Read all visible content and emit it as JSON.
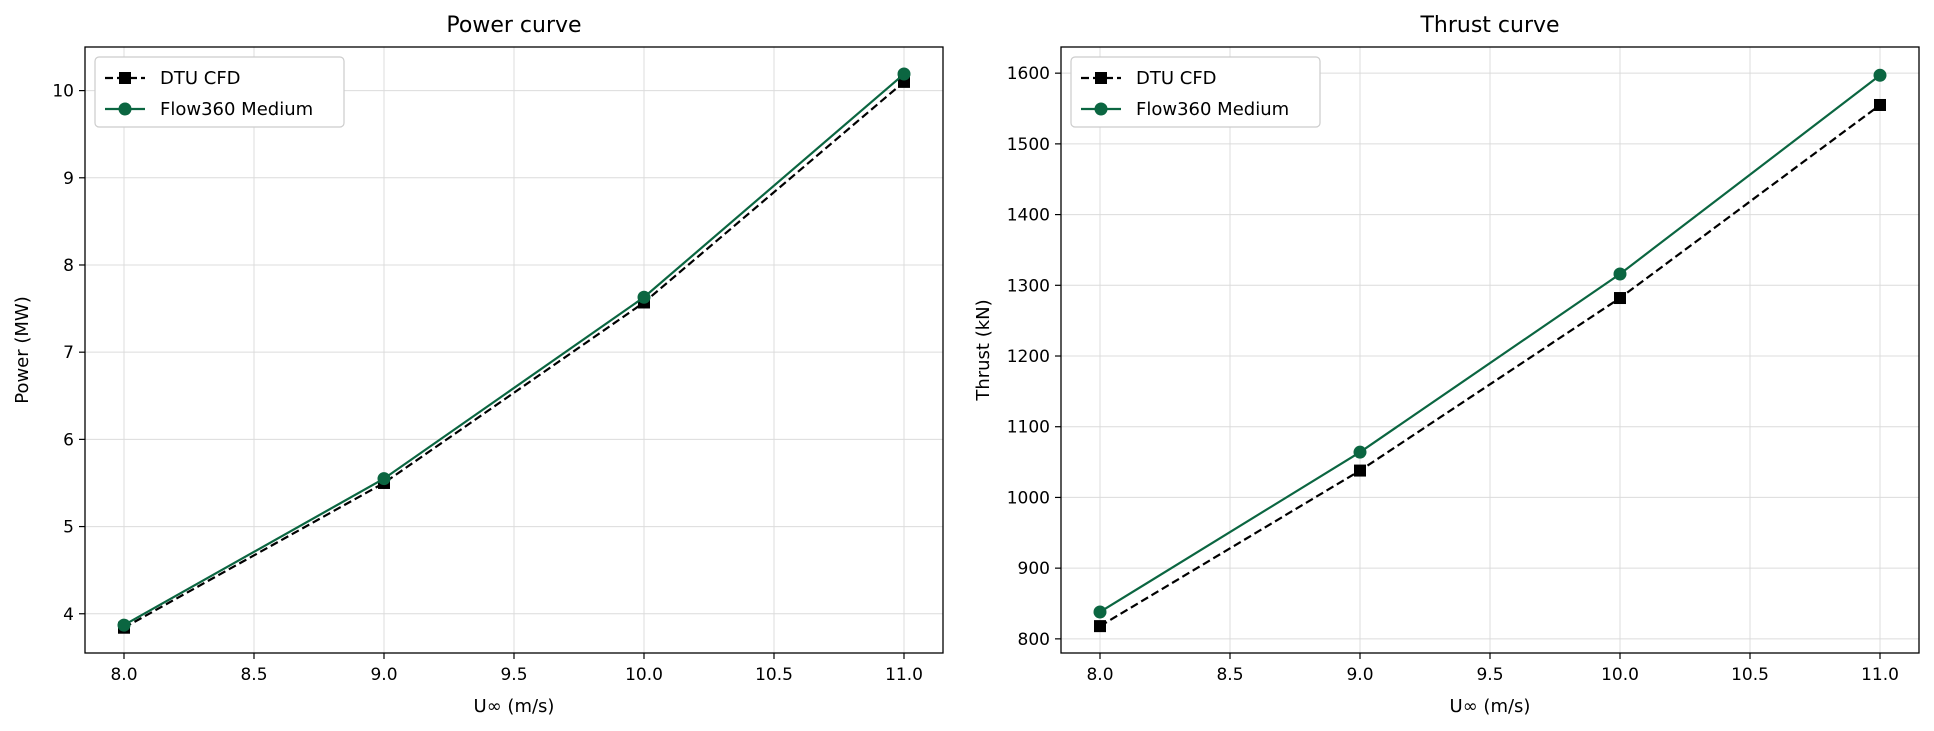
{
  "chart_data": [
    {
      "type": "line",
      "title": "Power curve",
      "xlabel": "U∞ (m/s)",
      "ylabel": "Power (MW)",
      "xlim": [
        7.85,
        11.15
      ],
      "ylim": [
        3.55,
        10.5
      ],
      "xticks": [
        8.0,
        8.5,
        9.0,
        9.5,
        10.0,
        10.5,
        11.0
      ],
      "xtick_labels": [
        "8.0",
        "8.5",
        "9.0",
        "9.5",
        "10.0",
        "10.5",
        "11.0"
      ],
      "yticks": [
        4,
        5,
        6,
        7,
        8,
        9,
        10
      ],
      "ytick_labels": [
        "4",
        "5",
        "6",
        "7",
        "8",
        "9",
        "10"
      ],
      "grid": true,
      "legend": "top-left",
      "x": [
        8.0,
        9.0,
        10.0,
        11.0
      ],
      "series": [
        {
          "name": "DTU CFD",
          "values": [
            3.84,
            5.5,
            7.57,
            10.1
          ],
          "color": "#000000",
          "marker": "square",
          "linestyle": "dashed"
        },
        {
          "name": "Flow360 Medium",
          "values": [
            3.87,
            5.55,
            7.63,
            10.19
          ],
          "color": "#0b6641",
          "marker": "circle",
          "linestyle": "solid"
        }
      ]
    },
    {
      "type": "line",
      "title": "Thrust curve",
      "xlabel": "U∞ (m/s)",
      "ylabel": "Thrust (kN)",
      "xlim": [
        7.85,
        11.15
      ],
      "ylim": [
        780,
        1637
      ],
      "xticks": [
        8.0,
        8.5,
        9.0,
        9.5,
        10.0,
        10.5,
        11.0
      ],
      "xtick_labels": [
        "8.0",
        "8.5",
        "9.0",
        "9.5",
        "10.0",
        "10.5",
        "11.0"
      ],
      "yticks": [
        800,
        900,
        1000,
        1100,
        1200,
        1300,
        1400,
        1500,
        1600
      ],
      "ytick_labels": [
        "800",
        "900",
        "1000",
        "1100",
        "1200",
        "1300",
        "1400",
        "1500",
        "1600"
      ],
      "grid": true,
      "legend": "top-left",
      "x": [
        8.0,
        9.0,
        10.0,
        11.0
      ],
      "series": [
        {
          "name": "DTU CFD",
          "values": [
            818,
            1038,
            1282,
            1555
          ],
          "color": "#000000",
          "marker": "square",
          "linestyle": "dashed"
        },
        {
          "name": "Flow360 Medium",
          "values": [
            838,
            1064,
            1316,
            1597
          ],
          "color": "#0b6641",
          "marker": "circle",
          "linestyle": "solid"
        }
      ]
    }
  ]
}
